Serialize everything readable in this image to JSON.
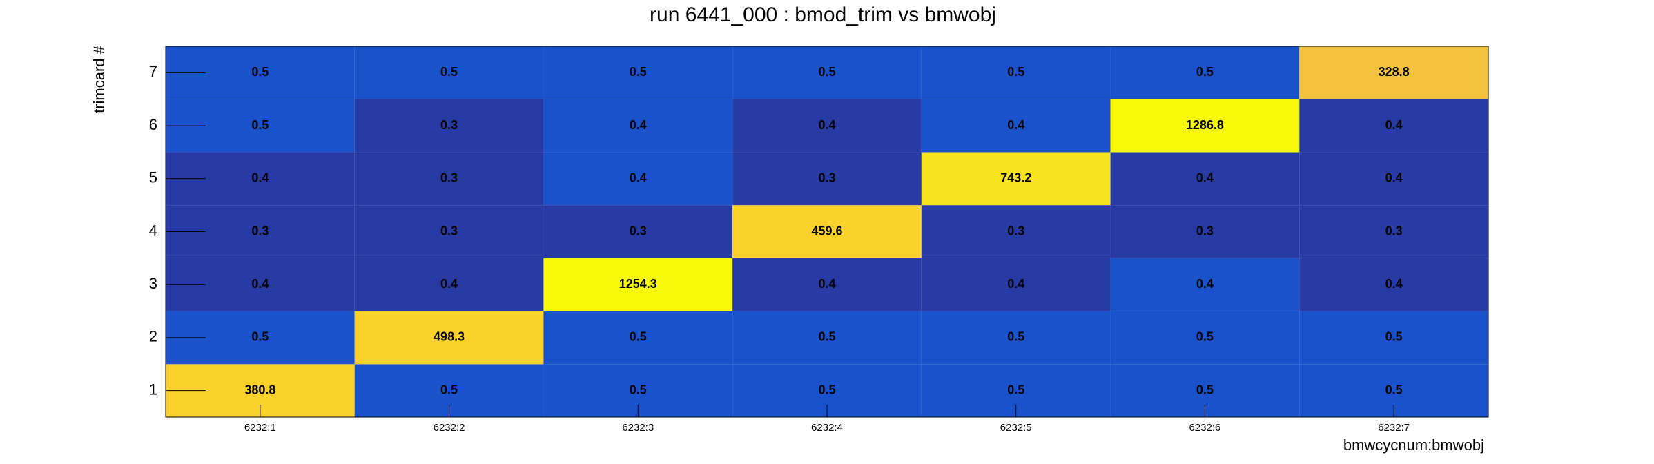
{
  "chart_data": {
    "type": "heatmap",
    "title": "run 6441_000 : bmod_trim vs bmwobj",
    "x_label": "bmwcycnum:bmwobj",
    "y_label": "trimcard #",
    "categories": [
      "6232:1",
      "6232:2",
      "6232:3",
      "6232:4",
      "6232:5",
      "6232:6",
      "6232:7"
    ],
    "y_categories": [
      1,
      2,
      3,
      4,
      5,
      6,
      7
    ],
    "values": [
      [
        380.8,
        0.5,
        0.5,
        0.5,
        0.5,
        0.5,
        0.5
      ],
      [
        0.5,
        498.3,
        0.5,
        0.5,
        0.5,
        0.5,
        0.5
      ],
      [
        0.4,
        0.4,
        1254.3,
        0.4,
        0.4,
        0.4,
        0.4
      ],
      [
        0.3,
        0.3,
        0.3,
        459.6,
        0.3,
        0.3,
        0.3
      ],
      [
        0.4,
        0.3,
        0.4,
        0.3,
        743.2,
        0.4,
        0.4
      ],
      [
        0.5,
        0.3,
        0.4,
        0.4,
        0.4,
        1286.8,
        0.4
      ],
      [
        0.5,
        0.5,
        0.5,
        0.5,
        0.5,
        0.5,
        328.8
      ]
    ],
    "colors": [
      [
        "#fbd22c",
        "#1a52cc",
        "#1a52cc",
        "#1a52cc",
        "#1a52cc",
        "#1a52cc",
        "#1a52cc"
      ],
      [
        "#1a52cc",
        "#fbd22c",
        "#1a52cc",
        "#1a52cc",
        "#1a52cc",
        "#1a52cc",
        "#1a52cc"
      ],
      [
        "#283aa3",
        "#283aa3",
        "#f8f80a",
        "#283aa3",
        "#283aa3",
        "#1a52cc",
        "#283aa3"
      ],
      [
        "#283aa3",
        "#283aa3",
        "#283aa3",
        "#fbd22c",
        "#283aa3",
        "#283aa3",
        "#283aa3"
      ],
      [
        "#283aa3",
        "#283aa3",
        "#1a52cc",
        "#283aa3",
        "#f6e41e",
        "#283aa3",
        "#283aa3"
      ],
      [
        "#1a52cc",
        "#283aa3",
        "#1a52cc",
        "#283aa3",
        "#1a52cc",
        "#f8f80a",
        "#283aa3"
      ],
      [
        "#1a52cc",
        "#1a52cc",
        "#1a52cc",
        "#1a52cc",
        "#1a52cc",
        "#1a52cc",
        "#f3c23c"
      ]
    ]
  }
}
